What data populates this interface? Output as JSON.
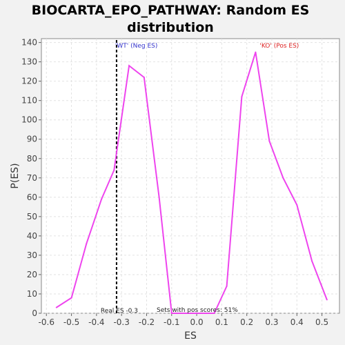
{
  "chart_data": {
    "type": "line",
    "title_line1": "BIOCARTA_EPO_PATHWAY: Random ES",
    "title_line2": "distribution",
    "xlabel": "ES",
    "ylabel": "P(ES)",
    "xlim": [
      -0.62,
      0.57
    ],
    "ylim": [
      0,
      142
    ],
    "xticks": [
      -0.6,
      -0.5,
      -0.4,
      -0.3,
      -0.2,
      -0.1,
      0.0,
      0.1,
      0.2,
      0.3,
      0.4,
      0.5
    ],
    "xtick_labels": [
      "-0.6",
      "-0.5",
      "-0.4",
      "-0.3",
      "-0.2",
      "-0.1",
      "0.0",
      "0.1",
      "0.2",
      "0.3",
      "0.4",
      "0.5"
    ],
    "yticks": [
      0,
      10,
      20,
      30,
      40,
      50,
      60,
      70,
      80,
      90,
      100,
      110,
      120,
      130,
      140
    ],
    "ytick_labels": [
      "0",
      "10",
      "20",
      "30",
      "40",
      "50",
      "60",
      "70",
      "80",
      "90",
      "100",
      "110",
      "120",
      "130",
      "140"
    ],
    "grid": true,
    "series": [
      {
        "color": "#ee44ee",
        "points": [
          [
            -0.56,
            3
          ],
          [
            -0.5,
            8
          ],
          [
            -0.44,
            36
          ],
          [
            -0.38,
            59
          ],
          [
            -0.33,
            74
          ],
          [
            -0.27,
            128
          ],
          [
            -0.21,
            122
          ],
          [
            -0.15,
            60
          ],
          [
            -0.1,
            0
          ],
          [
            -0.04,
            0
          ],
          [
            0.02,
            0
          ],
          [
            0.07,
            0
          ],
          [
            0.12,
            14
          ],
          [
            0.18,
            112
          ],
          [
            0.235,
            135
          ],
          [
            0.29,
            89
          ],
          [
            0.345,
            70
          ],
          [
            0.4,
            56
          ],
          [
            0.46,
            27
          ],
          [
            0.52,
            7
          ]
        ]
      }
    ],
    "real_es": -0.32,
    "real_es_label": "Real ES -0.3",
    "annotations": {
      "wt_label": "'WT' (Neg ES)",
      "wt_color": "#3333cc",
      "ko_label": "'KO' (Pos ES)",
      "ko_color": "#dd2222",
      "pos_scores_label": "Sets with pos scores: 51%"
    }
  }
}
